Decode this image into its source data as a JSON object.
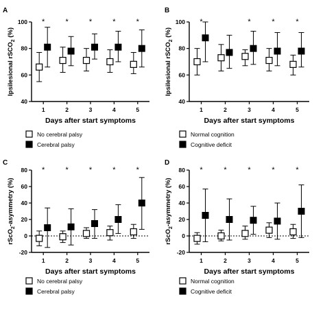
{
  "chart_data": [
    {
      "panel": "A",
      "type": "scatter",
      "xlabel": "Days after start symptoms",
      "ylabel": "Ipsilesional rSCO",
      "ylabel_sub": "2",
      "ylabel_suffix": " (%)",
      "ylim": [
        40,
        100
      ],
      "yticks": [
        40,
        60,
        80,
        100
      ],
      "x": [
        1,
        2,
        3,
        4,
        5
      ],
      "significance": [
        "*",
        "*",
        "*",
        "*",
        "*"
      ],
      "zero_line": false,
      "series": [
        {
          "name": "No cerebral palsy",
          "marker": "open-square",
          "values": [
            66,
            71,
            71,
            70,
            68
          ],
          "upper": [
            77,
            81,
            80,
            79,
            77
          ],
          "lower": [
            55,
            62,
            63,
            62,
            61
          ]
        },
        {
          "name": "Cerebral palsy",
          "marker": "filled-square",
          "values": [
            81,
            78,
            81,
            81,
            80
          ],
          "upper": [
            96,
            89,
            91,
            93,
            94
          ],
          "lower": [
            66,
            67,
            72,
            70,
            66
          ]
        }
      ]
    },
    {
      "panel": "B",
      "type": "scatter",
      "xlabel": "Days after start symptoms",
      "ylabel": "Ipsilesional rSCO",
      "ylabel_sub": "2",
      "ylabel_suffix": " (%)",
      "ylim": [
        40,
        100
      ],
      "yticks": [
        40,
        60,
        80,
        100
      ],
      "x": [
        1,
        2,
        3,
        4,
        5
      ],
      "significance": [
        "*",
        "",
        "*",
        "*",
        "*"
      ],
      "zero_line": false,
      "series": [
        {
          "name": "Normal cognition",
          "marker": "open-square",
          "values": [
            70,
            73,
            74,
            71,
            68
          ],
          "upper": [
            80,
            83,
            79,
            80,
            75
          ],
          "lower": [
            60,
            63,
            67,
            63,
            60
          ]
        },
        {
          "name": "Cognitive deficit",
          "marker": "filled-square",
          "values": [
            88,
            77,
            80,
            78,
            78
          ],
          "upper": [
            100,
            90,
            93,
            92,
            92
          ],
          "lower": [
            70,
            65,
            68,
            67,
            66
          ]
        }
      ]
    },
    {
      "panel": "C",
      "type": "scatter",
      "xlabel": "Days after start symptoms",
      "ylabel": "rScO",
      "ylabel_sub": "2",
      "ylabel_suffix": "-asymmetry (%)",
      "ylim": [
        -20,
        80
      ],
      "yticks": [
        -20,
        0,
        20,
        40,
        60,
        80
      ],
      "x": [
        1,
        2,
        3,
        4,
        5
      ],
      "significance": [
        "*",
        "*",
        "*",
        "*",
        "*"
      ],
      "zero_line": true,
      "series": [
        {
          "name": "No cerebral palsy",
          "marker": "open-square",
          "values": [
            -3,
            -1,
            3,
            4,
            5
          ],
          "upper": [
            6,
            6,
            10,
            12,
            14
          ],
          "lower": [
            -12,
            -8,
            -3,
            -5,
            -3
          ]
        },
        {
          "name": "Cerebral palsy",
          "marker": "filled-square",
          "values": [
            10,
            11,
            15,
            20,
            40
          ],
          "upper": [
            34,
            33,
            32,
            38,
            71
          ],
          "lower": [
            -14,
            -11,
            -3,
            3,
            8
          ]
        }
      ]
    },
    {
      "panel": "D",
      "type": "scatter",
      "xlabel": "Days after start symptoms",
      "ylabel": "rScO",
      "ylabel_sub": "2",
      "ylabel_suffix": "-asymmetry (%)",
      "ylim": [
        -20,
        80
      ],
      "yticks": [
        -20,
        0,
        20,
        40,
        60,
        80
      ],
      "x": [
        1,
        2,
        3,
        4,
        5
      ],
      "significance": [
        "*",
        "*",
        "*",
        "*",
        "*"
      ],
      "zero_line": true,
      "series": [
        {
          "name": "Normal cognition",
          "marker": "open-square",
          "values": [
            -3,
            0,
            3,
            7,
            5
          ],
          "upper": [
            4,
            7,
            12,
            16,
            14
          ],
          "lower": [
            -10,
            -6,
            -4,
            -2,
            -3
          ]
        },
        {
          "name": "Cognitive deficit",
          "marker": "filled-square",
          "values": [
            25,
            20,
            19,
            18,
            30
          ],
          "upper": [
            57,
            45,
            36,
            40,
            62
          ],
          "lower": [
            -7,
            -5,
            2,
            -4,
            -2
          ]
        }
      ]
    }
  ]
}
